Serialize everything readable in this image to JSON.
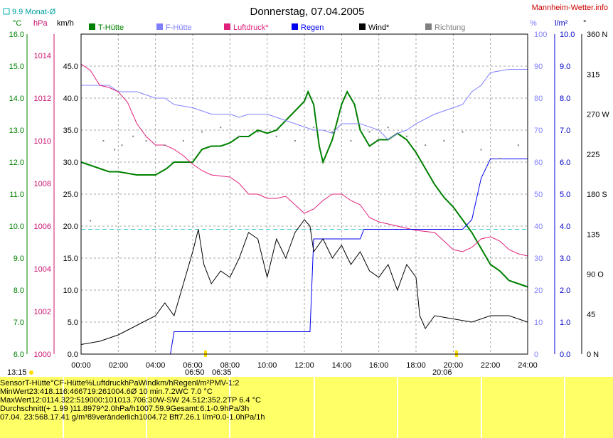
{
  "header": {
    "title": "Donnerstag, 07.04.2005",
    "site": "Mannheim-Wetter.info",
    "month_avg": "9.9 Monat-Ø",
    "unit_c": "°C",
    "unit_hpa": "hPa",
    "unit_kmh": "km/h",
    "unit_pct": "%",
    "unit_lm2": "l/m²",
    "unit_deg": "°"
  },
  "legend": [
    {
      "label": "T-Hütte",
      "color": "#008000"
    },
    {
      "label": "F-Hütte",
      "color": "#8080ff"
    },
    {
      "label": "Luftdruck*",
      "color": "#e0207a"
    },
    {
      "label": "Regen",
      "color": "#0000ee"
    },
    {
      "label": "Wind*",
      "color": "#000000"
    },
    {
      "label": "Richtung",
      "color": "#808080"
    }
  ],
  "axes": {
    "temp_ticks": [
      "16.0",
      "15.0",
      "14.0",
      "13.0",
      "12.0",
      "11.0",
      "10.0",
      "9.0",
      "8.0",
      "7.0",
      "6.0"
    ],
    "hpa_ticks": [
      "1014",
      "1012",
      "1010",
      "1008",
      "1006",
      "1004",
      "1002",
      "1000"
    ],
    "kmh_ticks": [
      "45.0",
      "40.0",
      "35.0",
      "30.0",
      "25.0",
      "20.0",
      "15.0",
      "10.0",
      "5.0",
      "0.0"
    ],
    "pct_ticks": [
      "100",
      "90",
      "80",
      "70",
      "60",
      "50",
      "40",
      "30",
      "20",
      "10",
      "0"
    ],
    "rain_ticks": [
      "10.0",
      "9.0",
      "8.0",
      "7.0",
      "6.0",
      "5.0",
      "4.0",
      "3.0",
      "2.0",
      "1.0",
      "0.0"
    ],
    "dir_ticks": [
      "360 N",
      "315",
      "270 W",
      "225",
      "180 S",
      "135",
      "90 O",
      "45",
      "0 N"
    ],
    "time_ticks": [
      "00:00",
      "02:00",
      "04:00",
      "06:00",
      "08:00",
      "10:00",
      "12:00",
      "14:00",
      "16:00",
      "18:00",
      "20:00",
      "22:00",
      "24:00"
    ],
    "sun_markers": [
      "13:15",
      "06:50",
      "06:35",
      "06:35",
      "20:06"
    ]
  },
  "chart_data": {
    "type": "line",
    "x_unit": "hours",
    "month_avg_temp": 9.9,
    "series": [
      {
        "name": "T-Hütte",
        "unit": "°C",
        "color": "#008000",
        "points": [
          [
            0,
            12.0
          ],
          [
            0.5,
            11.9
          ],
          [
            1,
            11.8
          ],
          [
            1.5,
            11.7
          ],
          [
            2,
            11.7
          ],
          [
            3,
            11.6
          ],
          [
            4,
            11.6
          ],
          [
            4.6,
            11.8
          ],
          [
            5,
            12.0
          ],
          [
            5.5,
            12.0
          ],
          [
            6,
            12.0
          ],
          [
            6.5,
            12.4
          ],
          [
            7,
            12.5
          ],
          [
            7.5,
            12.5
          ],
          [
            8,
            12.6
          ],
          [
            8.5,
            12.8
          ],
          [
            9,
            12.8
          ],
          [
            9.5,
            13.0
          ],
          [
            10,
            12.9
          ],
          [
            10.5,
            13.0
          ],
          [
            11,
            13.3
          ],
          [
            11.5,
            13.6
          ],
          [
            12.0,
            13.9
          ],
          [
            12.2,
            14.2
          ],
          [
            12.5,
            13.8
          ],
          [
            12.8,
            12.5
          ],
          [
            13.0,
            12.0
          ],
          [
            13.5,
            12.7
          ],
          [
            14.0,
            13.8
          ],
          [
            14.3,
            14.2
          ],
          [
            14.7,
            13.8
          ],
          [
            15.0,
            13.0
          ],
          [
            15.5,
            12.5
          ],
          [
            16.0,
            12.7
          ],
          [
            16.5,
            12.7
          ],
          [
            17.0,
            12.9
          ],
          [
            17.5,
            12.7
          ],
          [
            18.0,
            12.3
          ],
          [
            18.5,
            11.8
          ],
          [
            19.0,
            11.3
          ],
          [
            19.5,
            10.9
          ],
          [
            20.0,
            10.6
          ],
          [
            20.5,
            10.2
          ],
          [
            21.0,
            9.8
          ],
          [
            21.5,
            9.3
          ],
          [
            22.0,
            8.8
          ],
          [
            22.5,
            8.6
          ],
          [
            23.0,
            8.3
          ],
          [
            23.5,
            8.2
          ],
          [
            24.0,
            8.1
          ]
        ]
      },
      {
        "name": "F-Hütte",
        "unit": "%",
        "color": "#8080ff",
        "points": [
          [
            0,
            84
          ],
          [
            1,
            84
          ],
          [
            1.5,
            84
          ],
          [
            2,
            82
          ],
          [
            3,
            82
          ],
          [
            4,
            80
          ],
          [
            4.5,
            80
          ],
          [
            5,
            78
          ],
          [
            6,
            77
          ],
          [
            7,
            75
          ],
          [
            8,
            75
          ],
          [
            8.5,
            74
          ],
          [
            9,
            75
          ],
          [
            10,
            75
          ],
          [
            11,
            73
          ],
          [
            11.5,
            72
          ],
          [
            12,
            71
          ],
          [
            12.5,
            70
          ],
          [
            13,
            70
          ],
          [
            13.5,
            69
          ],
          [
            14,
            72
          ],
          [
            15,
            72
          ],
          [
            16,
            70
          ],
          [
            16.5,
            67
          ],
          [
            17,
            69
          ],
          [
            17.5,
            70
          ],
          [
            18,
            72
          ],
          [
            19,
            75
          ],
          [
            20,
            77
          ],
          [
            20.5,
            78
          ],
          [
            21,
            82
          ],
          [
            21.5,
            84
          ],
          [
            22,
            88
          ],
          [
            23,
            89
          ],
          [
            24,
            89
          ]
        ]
      },
      {
        "name": "Luftdruck*",
        "unit": "hPa",
        "color": "#e0207a",
        "points": [
          [
            0,
            1013.6
          ],
          [
            0.5,
            1013.3
          ],
          [
            1,
            1012.6
          ],
          [
            1.5,
            1012.5
          ],
          [
            2,
            1012.3
          ],
          [
            2.5,
            1011.8
          ],
          [
            3,
            1010.8
          ],
          [
            3.5,
            1010.2
          ],
          [
            4,
            1009.8
          ],
          [
            4.5,
            1009.8
          ],
          [
            5,
            1009.6
          ],
          [
            5.5,
            1009.3
          ],
          [
            6,
            1008.9
          ],
          [
            6.5,
            1008.6
          ],
          [
            7,
            1008.4
          ],
          [
            8,
            1008.3
          ],
          [
            8.5,
            1008.0
          ],
          [
            9,
            1007.5
          ],
          [
            9.5,
            1007.5
          ],
          [
            10,
            1007.3
          ],
          [
            10.5,
            1007.3
          ],
          [
            11,
            1007.4
          ],
          [
            11.5,
            1007.0
          ],
          [
            12,
            1006.6
          ],
          [
            12.5,
            1006.8
          ],
          [
            13,
            1007.2
          ],
          [
            13.5,
            1007.5
          ],
          [
            14,
            1007.5
          ],
          [
            14.5,
            1007.2
          ],
          [
            15,
            1007.0
          ],
          [
            15.5,
            1006.4
          ],
          [
            16,
            1006.2
          ],
          [
            17,
            1006.0
          ],
          [
            18,
            1005.8
          ],
          [
            19,
            1005.7
          ],
          [
            19.5,
            1005.3
          ],
          [
            20,
            1004.9
          ],
          [
            20.5,
            1004.8
          ],
          [
            21,
            1005.0
          ],
          [
            21.5,
            1005.4
          ],
          [
            22,
            1005.5
          ],
          [
            22.5,
            1005.3
          ],
          [
            23,
            1004.9
          ],
          [
            23.5,
            1004.7
          ],
          [
            24,
            1004.6
          ]
        ]
      },
      {
        "name": "Regen",
        "unit": "l/m²",
        "color": "#0000ee",
        "points": [
          [
            0,
            0
          ],
          [
            4.8,
            0
          ],
          [
            5.0,
            0.7
          ],
          [
            12.3,
            0.7
          ],
          [
            12.5,
            3.6
          ],
          [
            15,
            3.6
          ],
          [
            15.2,
            3.9
          ],
          [
            20.5,
            3.9
          ],
          [
            21,
            4.2
          ],
          [
            21.5,
            5.5
          ],
          [
            22,
            6.1
          ],
          [
            24,
            6.1
          ]
        ]
      },
      {
        "name": "Wind*",
        "unit": "km/h",
        "color": "#000000",
        "points": [
          [
            0,
            1.5
          ],
          [
            1,
            2
          ],
          [
            2,
            3
          ],
          [
            3,
            4.5
          ],
          [
            4,
            6
          ],
          [
            4.5,
            8
          ],
          [
            5,
            6
          ],
          [
            5.5,
            11
          ],
          [
            6,
            16
          ],
          [
            6.3,
            19.5
          ],
          [
            6.6,
            14
          ],
          [
            7,
            11
          ],
          [
            7.5,
            13
          ],
          [
            8,
            12
          ],
          [
            8.5,
            15
          ],
          [
            9,
            19
          ],
          [
            9.5,
            18
          ],
          [
            10,
            12
          ],
          [
            10.5,
            18
          ],
          [
            11,
            15
          ],
          [
            11.5,
            19
          ],
          [
            12,
            21
          ],
          [
            12.3,
            20
          ],
          [
            12.5,
            16
          ],
          [
            13,
            18
          ],
          [
            13.5,
            15
          ],
          [
            14,
            17
          ],
          [
            14.5,
            14
          ],
          [
            15,
            16
          ],
          [
            15.5,
            13
          ],
          [
            16,
            12
          ],
          [
            16.5,
            14
          ],
          [
            17,
            10
          ],
          [
            17.5,
            14
          ],
          [
            18,
            12
          ],
          [
            18.2,
            6
          ],
          [
            18.5,
            4
          ],
          [
            19,
            6
          ],
          [
            20,
            5.5
          ],
          [
            21,
            5
          ],
          [
            22,
            6
          ],
          [
            23,
            6
          ],
          [
            24,
            5
          ]
        ]
      },
      {
        "name": "Richtung",
        "unit": "°",
        "color": "#808080",
        "style": "dots",
        "points": [
          [
            0.5,
            150
          ],
          [
            1.2,
            240
          ],
          [
            1.8,
            230
          ],
          [
            2.2,
            235
          ],
          [
            2.8,
            245
          ],
          [
            3.5,
            240
          ],
          [
            4.5,
            235
          ],
          [
            5.5,
            240
          ],
          [
            6.5,
            250
          ],
          [
            7.5,
            255
          ],
          [
            8.5,
            245
          ],
          [
            9.5,
            250
          ],
          [
            10.5,
            245
          ],
          [
            11.5,
            240
          ],
          [
            12.5,
            255
          ],
          [
            13.5,
            250
          ],
          [
            14.5,
            240
          ],
          [
            15.5,
            250
          ],
          [
            16.5,
            255
          ],
          [
            17.5,
            245
          ],
          [
            18.5,
            235
          ],
          [
            19.5,
            240
          ],
          [
            20.5,
            250
          ],
          [
            21.5,
            230
          ],
          [
            22.5,
            220
          ],
          [
            23.5,
            235
          ]
        ]
      }
    ]
  },
  "table": {
    "rows": [
      {
        "label": "Sensor",
        "t_time": "T-Hütte",
        "t_val": "°C",
        "f_time": "F-Hütte",
        "f_val": "%",
        "p_time": "Luftdruck",
        "p_val": "hPa",
        "w_time": "Wind",
        "w_val": "km/h",
        "r_time": "Regen",
        "r_val": "l/m²",
        "x": "PMV-1:2"
      },
      {
        "label": "MinWert",
        "t_time": "23:41",
        "t_val": "8.1",
        "f_time": "16:46",
        "f_val": "67",
        "p_time": "19:26",
        "p_val": "1004.6",
        "w_time": "Ø 10 min.",
        "w_val": "7.2",
        "r_time": "",
        "r_val": "",
        "x": "WC 7.0 °C"
      },
      {
        "label": "MaxWert",
        "t_time": "12:01",
        "t_val": "14.3",
        "f_time": "22:51",
        "f_val": "90",
        "p_time": "00:10",
        "p_val": "1013.7",
        "w_time": "06:30",
        "w_val": "W-SW 24.5",
        "r_time": "12:35",
        "r_val": "2.2",
        "x": "TP 6.4 °C"
      },
      {
        "label": "Durchschnitt",
        "t_time": "(+ 1.99 )",
        "t_val": "11.89",
        "f_time": "",
        "f_val": "79",
        "p_time": "^2.0hPa/h",
        "p_val": "1007.5",
        "w_time": "",
        "w_val": "9.9",
        "r_time": "Gesamt:",
        "r_val": "6.1",
        "x": "-0.9hPa/3h"
      },
      {
        "label": "07.04. 23:56",
        "t_time": "",
        "t_val": "8.1",
        "f_time": "7.41 g/m³",
        "f_val": "89",
        "p_time": "veränderlich",
        "p_val": "1004.7",
        "w_time": "2 Bft",
        "w_val": "7.2",
        "r_time": "6.1 l/m²",
        "r_val": "0.0",
        "x": "-1.0hPa/1h"
      }
    ]
  }
}
